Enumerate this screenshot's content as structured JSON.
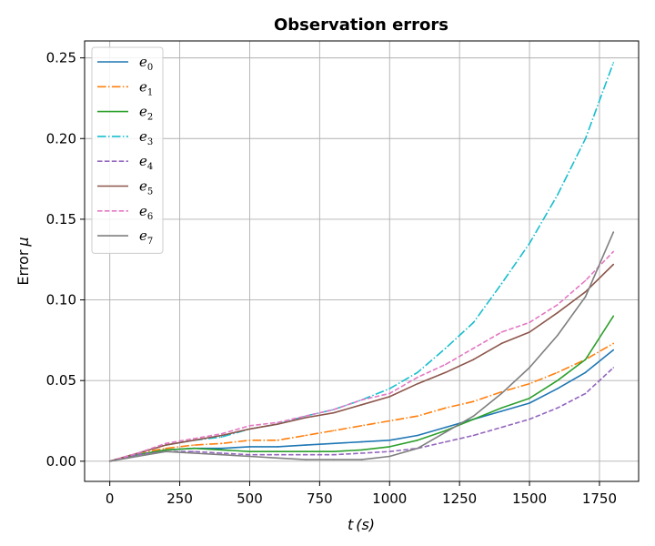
{
  "chart_data": {
    "type": "line",
    "title": "Observation errors",
    "xlabel_var": "t",
    "xlabel_unit": "(s)",
    "ylabel_text": "Error",
    "ylabel_symbol": "μ",
    "xlim": [
      -90,
      1890
    ],
    "ylim": [
      -0.0125,
      0.2605
    ],
    "xticks": [
      0,
      250,
      500,
      750,
      1000,
      1250,
      1500,
      1750
    ],
    "xtick_labels": [
      "0",
      "250",
      "500",
      "750",
      "1000",
      "1250",
      "1500",
      "1750"
    ],
    "yticks": [
      0.0,
      0.05,
      0.1,
      0.15,
      0.2,
      0.25
    ],
    "ytick_labels": [
      "0.00",
      "0.05",
      "0.10",
      "0.15",
      "0.20",
      "0.25"
    ],
    "grid": true,
    "legend_position": "upper-left",
    "x": [
      0,
      100,
      200,
      300,
      400,
      500,
      600,
      700,
      800,
      900,
      1000,
      1100,
      1200,
      1300,
      1400,
      1500,
      1600,
      1700,
      1800
    ],
    "series": [
      {
        "name": "e",
        "subscript": "0",
        "color": "#1f77b4",
        "dash": "solid",
        "values": [
          0,
          0.004,
          0.007,
          0.008,
          0.008,
          0.009,
          0.009,
          0.01,
          0.011,
          0.012,
          0.013,
          0.016,
          0.021,
          0.026,
          0.031,
          0.036,
          0.045,
          0.055,
          0.069
        ]
      },
      {
        "name": "e",
        "subscript": "1",
        "color": "#ff7f0e",
        "dash": "dashdot",
        "values": [
          0,
          0.005,
          0.008,
          0.01,
          0.011,
          0.013,
          0.013,
          0.016,
          0.019,
          0.022,
          0.025,
          0.028,
          0.033,
          0.037,
          0.043,
          0.048,
          0.055,
          0.063,
          0.073
        ]
      },
      {
        "name": "e",
        "subscript": "2",
        "color": "#2ca02c",
        "dash": "solid",
        "values": [
          0,
          0.004,
          0.007,
          0.008,
          0.007,
          0.006,
          0.006,
          0.006,
          0.006,
          0.007,
          0.009,
          0.013,
          0.019,
          0.026,
          0.033,
          0.039,
          0.05,
          0.063,
          0.09
        ]
      },
      {
        "name": "e",
        "subscript": "3",
        "color": "#17becf",
        "dash": "dashdot",
        "values": [
          0,
          0.005,
          0.01,
          0.013,
          0.015,
          0.02,
          0.023,
          0.028,
          0.032,
          0.038,
          0.045,
          0.055,
          0.07,
          0.086,
          0.11,
          0.135,
          0.165,
          0.2,
          0.247
        ]
      },
      {
        "name": "e",
        "subscript": "4",
        "color": "#9467bd",
        "dash": "dashed",
        "values": [
          0,
          0.004,
          0.006,
          0.006,
          0.005,
          0.004,
          0.004,
          0.004,
          0.004,
          0.005,
          0.006,
          0.008,
          0.012,
          0.016,
          0.021,
          0.026,
          0.033,
          0.042,
          0.058
        ]
      },
      {
        "name": "e",
        "subscript": "5",
        "color": "#8c564b",
        "dash": "solid",
        "values": [
          0,
          0.005,
          0.01,
          0.013,
          0.016,
          0.02,
          0.023,
          0.027,
          0.03,
          0.035,
          0.04,
          0.048,
          0.055,
          0.063,
          0.073,
          0.08,
          0.092,
          0.105,
          0.122
        ]
      },
      {
        "name": "e",
        "subscript": "6",
        "color": "#e377c2",
        "dash": "dashed",
        "values": [
          0,
          0.005,
          0.011,
          0.014,
          0.017,
          0.022,
          0.024,
          0.028,
          0.032,
          0.038,
          0.042,
          0.052,
          0.06,
          0.07,
          0.08,
          0.086,
          0.097,
          0.112,
          0.13
        ]
      },
      {
        "name": "e",
        "subscript": "7",
        "color": "#7f7f7f",
        "dash": "solid",
        "values": [
          0,
          0.003,
          0.006,
          0.005,
          0.004,
          0.003,
          0.002,
          0.001,
          0.001,
          0.001,
          0.003,
          0.008,
          0.018,
          0.028,
          0.042,
          0.058,
          0.078,
          0.102,
          0.142
        ]
      }
    ]
  }
}
